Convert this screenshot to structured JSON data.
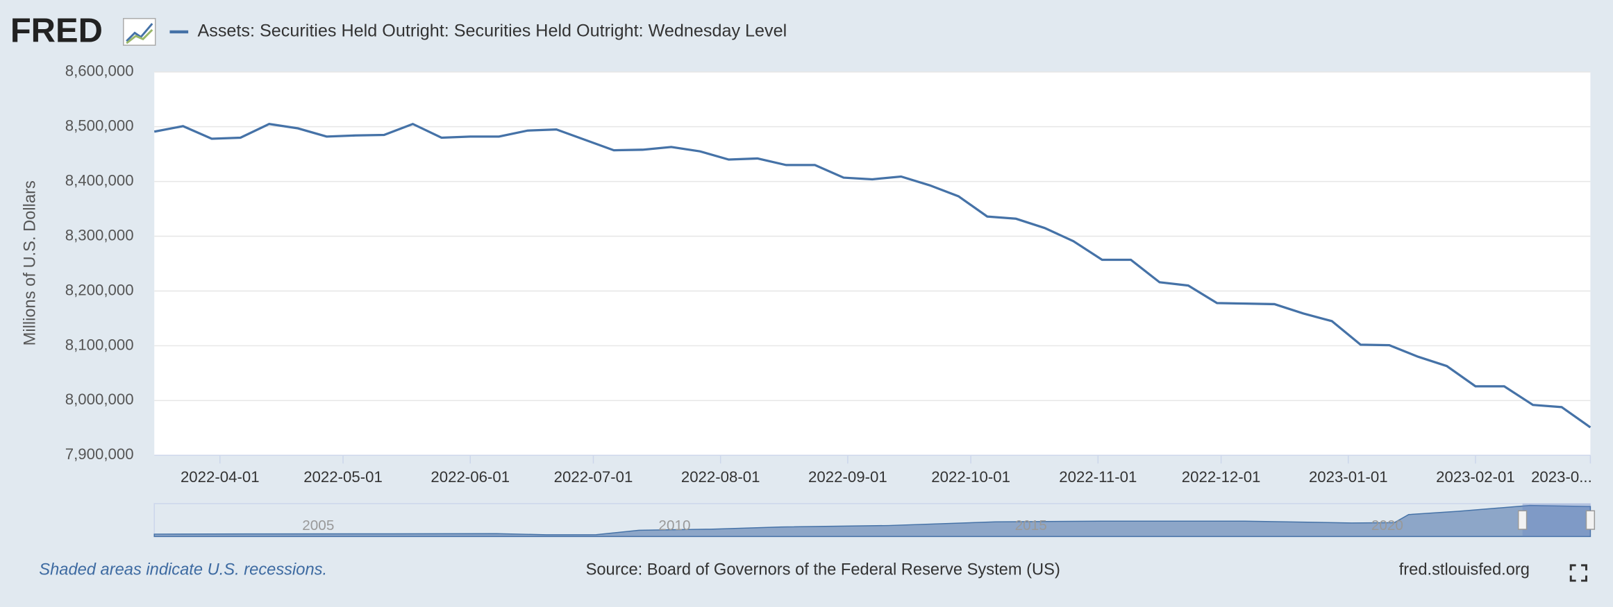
{
  "logo": "FRED",
  "chart_data": {
    "type": "line",
    "series": [
      {
        "name": "Assets: Securities Held Outright: Securities Held Outright: Wednesday Level",
        "color": "#4572a7",
        "values": [
          8491000,
          8501000,
          8478000,
          8480000,
          8505000,
          8497000,
          8482000,
          8484000,
          8485000,
          8505000,
          8480000,
          8482000,
          8482000,
          8493000,
          8495000,
          8476000,
          8457000,
          8458000,
          8463000,
          8455000,
          8440000,
          8442000,
          8430000,
          8430000,
          8407000,
          8404000,
          8409000,
          8393000,
          8373000,
          8336000,
          8332000,
          8315000,
          8291000,
          8257000,
          8257000,
          8216000,
          8210000,
          8178000,
          8177000,
          8176000,
          8159000,
          8145000,
          8102000,
          8101000,
          8080000,
          8063000,
          8026000,
          8026000,
          7992000,
          7988000,
          7951000
        ]
      }
    ],
    "x": [
      "2022-03-16",
      "2022-03-23",
      "2022-03-30",
      "2022-04-06",
      "2022-04-13",
      "2022-04-20",
      "2022-04-27",
      "2022-05-04",
      "2022-05-11",
      "2022-05-18",
      "2022-05-25",
      "2022-06-01",
      "2022-06-08",
      "2022-06-15",
      "2022-06-22",
      "2022-06-29",
      "2022-07-06",
      "2022-07-13",
      "2022-07-20",
      "2022-07-27",
      "2022-08-03",
      "2022-08-10",
      "2022-08-17",
      "2022-08-24",
      "2022-08-31",
      "2022-09-07",
      "2022-09-14",
      "2022-09-21",
      "2022-09-28",
      "2022-10-05",
      "2022-10-12",
      "2022-10-19",
      "2022-10-26",
      "2022-11-02",
      "2022-11-09",
      "2022-11-16",
      "2022-11-23",
      "2022-11-30",
      "2022-12-07",
      "2022-12-14",
      "2022-12-21",
      "2022-12-28",
      "2023-01-04",
      "2023-01-11",
      "2023-01-18",
      "2023-01-25",
      "2023-02-01",
      "2023-02-08",
      "2023-02-15",
      "2023-02-22",
      "2023-03-01"
    ],
    "xlim": [
      "2022-03-16",
      "2023-03-01"
    ],
    "xticks": [
      "2022-04-01",
      "2022-05-01",
      "2022-06-01",
      "2022-07-01",
      "2022-08-01",
      "2022-09-01",
      "2022-10-01",
      "2022-11-01",
      "2022-12-01",
      "2023-01-01",
      "2023-02-01",
      {
        "value": "2023-03-01",
        "label": "2023-0..."
      }
    ],
    "ylim": [
      7900000,
      8600000
    ],
    "yticks": [
      {
        "value": 7900000,
        "label": "7,900,000"
      },
      {
        "value": 8000000,
        "label": "8,000,000"
      },
      {
        "value": 8100000,
        "label": "8,100,000"
      },
      {
        "value": 8200000,
        "label": "8,200,000"
      },
      {
        "value": 8300000,
        "label": "8,300,000"
      },
      {
        "value": 8400000,
        "label": "8,400,000"
      },
      {
        "value": 8500000,
        "label": "8,500,000"
      },
      {
        "value": 8600000,
        "label": "8,600,000"
      }
    ],
    "y_label": "Millions of U.S. Dollars",
    "grid": true,
    "navigator": {
      "x": [
        2002.7,
        2004,
        2006,
        2007.5,
        2008.2,
        2008.9,
        2009.5,
        2010.5,
        2011.5,
        2013,
        2014.5,
        2016,
        2018,
        2019.5,
        2020.1,
        2020.3,
        2021,
        2022,
        2022.85
      ],
      "values": [
        650000,
        700000,
        740000,
        780000,
        480000,
        500000,
        1700000,
        2000000,
        2600000,
        3000000,
        4000000,
        4200000,
        4200000,
        3700000,
        3800000,
        6000000,
        6900000,
        8500000,
        8200000
      ],
      "xlim": [
        2002.7,
        2022.85
      ],
      "ylim": [
        0,
        9000000
      ],
      "xticks": [
        2005,
        2010,
        2015,
        2020
      ]
    }
  },
  "footer": {
    "recessions": "Shaded areas indicate U.S. recessions.",
    "source": "Source: Board of Governors of the Federal Reserve System (US)",
    "site": "fred.stlouisfed.org"
  }
}
